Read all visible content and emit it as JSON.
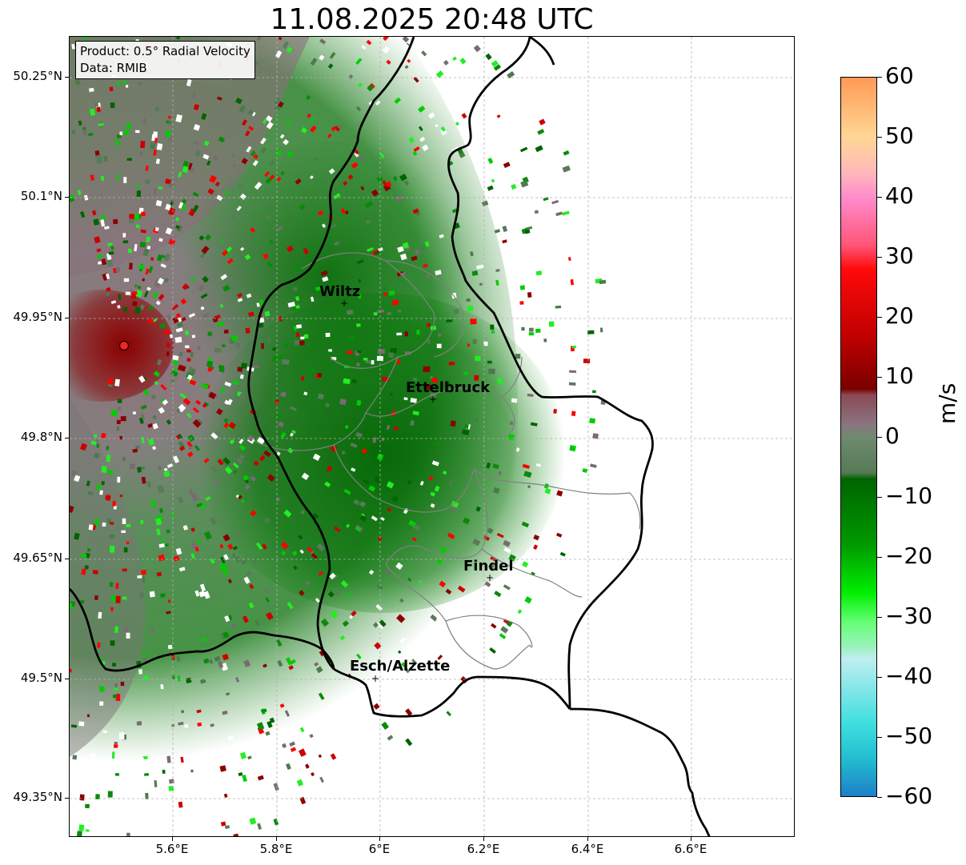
{
  "title": "11.08.2025 20:48 UTC",
  "info": {
    "product": "Product: 0.5° Radial Velocity",
    "data": "Data: RMIB"
  },
  "lat_ticks": [
    "50.25°N",
    "50.1°N",
    "49.95°N",
    "49.8°N",
    "49.65°N",
    "49.5°N",
    "49.35°N"
  ],
  "lon_ticks": [
    "5.6°E",
    "5.8°E",
    "6°E",
    "6.2°E",
    "6.4°E",
    "6.6°E"
  ],
  "cities": [
    {
      "name": "Wiltz"
    },
    {
      "name": "Ettelbruck"
    },
    {
      "name": "Findel"
    },
    {
      "name": "Esch/Alzette"
    }
  ],
  "colorbar": {
    "unit": "m/s",
    "ticks": [
      "60",
      "50",
      "40",
      "30",
      "20",
      "10",
      "0",
      "−10",
      "−20",
      "−30",
      "−40",
      "−50",
      "−60"
    ],
    "range": [
      -60,
      60
    ],
    "stops": [
      {
        "v": 60,
        "c": "#ff9a55"
      },
      {
        "v": 50,
        "c": "#ffd795"
      },
      {
        "v": 44,
        "c": "#ffb7bb"
      },
      {
        "v": 40,
        "c": "#ff8ccc"
      },
      {
        "v": 32,
        "c": "#ff5577"
      },
      {
        "v": 28,
        "c": "#ff0a0a"
      },
      {
        "v": 17,
        "c": "#c20000"
      },
      {
        "v": 8,
        "c": "#7a0000"
      },
      {
        "v": 7,
        "c": "#8a4a55"
      },
      {
        "v": 2,
        "c": "#8a7580"
      },
      {
        "v": 0,
        "c": "#6f8a6f"
      },
      {
        "v": -6,
        "c": "#557a55"
      },
      {
        "v": -7,
        "c": "#006400"
      },
      {
        "v": -18,
        "c": "#009900"
      },
      {
        "v": -26,
        "c": "#00ee00"
      },
      {
        "v": -31,
        "c": "#66ff77"
      },
      {
        "v": -35,
        "c": "#99f2bb"
      },
      {
        "v": -37,
        "c": "#bfeef0"
      },
      {
        "v": -48,
        "c": "#3ddede"
      },
      {
        "v": -54,
        "c": "#22bbd0"
      },
      {
        "v": -60,
        "c": "#1e7fc8"
      }
    ]
  },
  "colors": {
    "radar_site": "#ff2222",
    "border": "#000000",
    "canton_lines": "#808080",
    "grid": "#b0b0b0"
  }
}
